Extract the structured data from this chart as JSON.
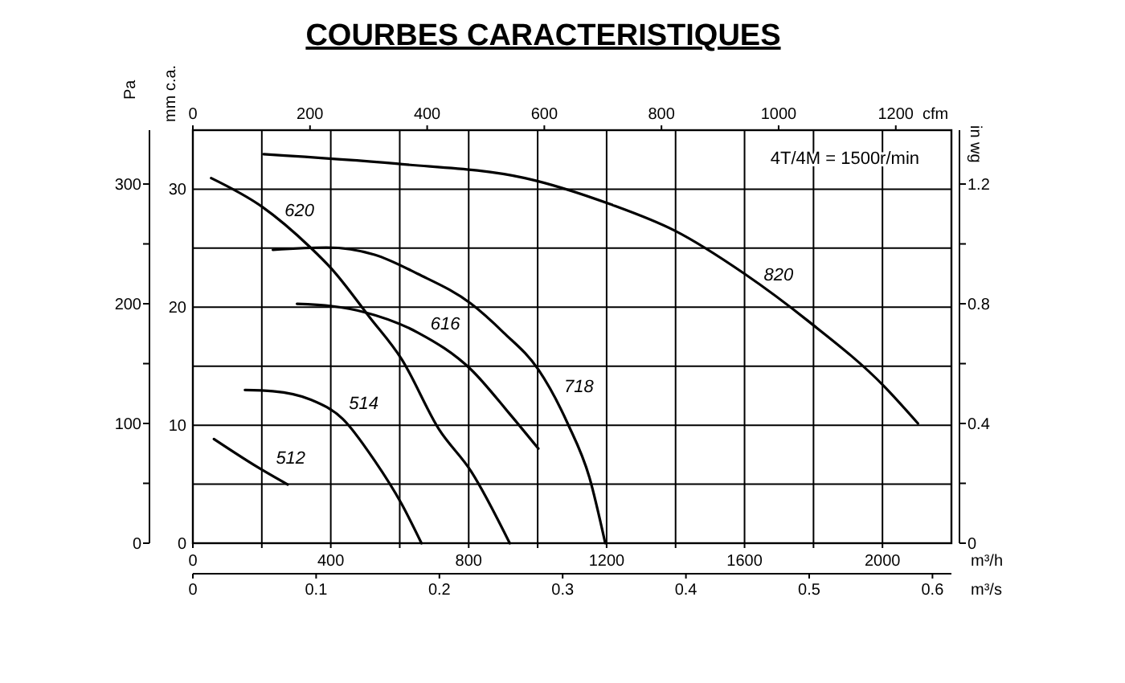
{
  "chart_data": {
    "type": "line",
    "title": "COURBES CARACTERISTIQUES",
    "xlabel": "m³/h",
    "x2label": "cfm",
    "ylabel": "Pa",
    "y2label": "mm c.a.",
    "y3label": "in wg",
    "annotations": [
      "4T/4M = 1500r/min",
      "0",
      "0.1",
      "0.2",
      "0.3",
      "0.4",
      "0.5",
      "0.6",
      "m³/s"
    ],
    "xlim": [
      0,
      2200
    ],
    "xticks": [
      0,
      {
        "value": 200,
        "label": null
      },
      400,
      {
        "value": 600,
        "label": null
      },
      800,
      {
        "value": 1000,
        "label": null
      },
      1200,
      {
        "value": 1400,
        "label": null
      },
      1600,
      {
        "value": 1800,
        "label": null
      },
      2000
    ],
    "x2lim": [
      0,
      1295
    ],
    "x2ticks": [
      0,
      200,
      400,
      600,
      800,
      1000,
      1200
    ],
    "ylim": [
      0,
      345
    ],
    "yticks": [
      0,
      {
        "value": 50,
        "label": null
      },
      100,
      {
        "value": 150,
        "label": null
      },
      200,
      {
        "value": 250,
        "label": null
      },
      300
    ],
    "y2lim": [
      0,
      35
    ],
    "y2ticks": [
      0,
      {
        "value": 5,
        "label": null
      },
      10,
      {
        "value": 15,
        "label": null
      },
      20,
      {
        "value": 25,
        "label": null
      },
      30
    ],
    "y3lim": [
      0,
      1.38
    ],
    "y3ticks": [
      0,
      {
        "value": 0.2,
        "label": null
      },
      0.4,
      {
        "value": 0.6,
        "label": null
      },
      0.8,
      {
        "value": 1.0,
        "label": null
      },
      1.2
    ],
    "grid": true,
    "marker": "none",
    "line_style": "solid",
    "series": [
      {
        "name": "820",
        "color": "#000000",
        "x": [
          205,
          590,
          963,
          1212,
          1398,
          1600,
          1787,
          2005,
          2103
        ],
        "values": [
          325,
          317,
          305,
          283,
          261,
          225,
          185,
          131,
          100
        ]
      },
      {
        "name": "620",
        "color": "#000000",
        "x": [
          53,
          201,
          341,
          403,
          512,
          605,
          714,
          807,
          919
        ],
        "values": [
          305,
          281,
          247,
          229,
          189,
          154,
          95,
          60,
          0
        ]
      },
      {
        "name": "718",
        "color": "#000000",
        "x": [
          232,
          387,
          527,
          652,
          807,
          901,
          1002,
          1087,
          1150,
          1196
        ],
        "values": [
          245,
          247,
          241,
          225,
          200,
          176,
          145,
          100,
          55,
          0
        ]
      },
      {
        "name": "616",
        "color": "#000000",
        "x": [
          302,
          403,
          497,
          652,
          807,
          916,
          1002
        ],
        "values": [
          200,
          198,
          193,
          176,
          145,
          109,
          79
        ]
      },
      {
        "name": "514",
        "color": "#000000",
        "x": [
          151,
          232,
          341,
          434,
          527,
          605,
          663
        ],
        "values": [
          128,
          127,
          120,
          104,
          69,
          33,
          0
        ]
      },
      {
        "name": "512",
        "color": "#000000",
        "x": [
          61,
          185,
          275
        ],
        "values": [
          87,
          64,
          49
        ]
      }
    ]
  }
}
